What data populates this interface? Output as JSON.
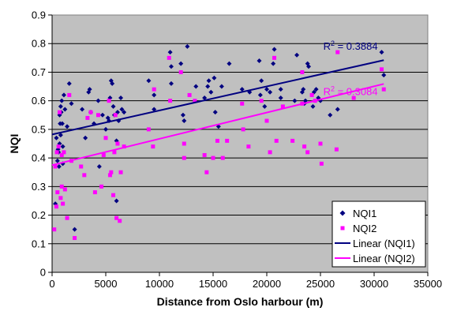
{
  "chart_data": {
    "type": "scatter",
    "title": "",
    "xlabel": "Distance from Oslo harbour (m)",
    "ylabel": "NQI",
    "xlim": [
      0,
      35000
    ],
    "ylim": [
      0,
      0.9
    ],
    "x_ticks": [
      0,
      5000,
      10000,
      15000,
      20000,
      25000,
      30000,
      35000
    ],
    "x_tick_labels": [
      "0",
      "5000",
      "10000",
      "15000",
      "20000",
      "25000",
      "30000",
      "35000"
    ],
    "y_ticks": [
      0,
      0.1,
      0.2,
      0.3,
      0.4,
      0.5,
      0.6,
      0.7,
      0.8,
      0.9
    ],
    "y_tick_labels": [
      "0",
      "0.1",
      "0.2",
      "0.3",
      "0.4",
      "0.5",
      "0.6",
      "0.7",
      "0.8",
      "0.9"
    ],
    "plot_background": "#c0c0c0",
    "grid": "horizontal",
    "legend_position": "bottom-right",
    "series": [
      {
        "name": "NQI1",
        "kind": "scatter",
        "marker": "diamond",
        "color": "#000080",
        "points": [
          [
            300,
            0.24
          ],
          [
            400,
            0.47
          ],
          [
            500,
            0.39
          ],
          [
            550,
            0.43
          ],
          [
            600,
            0.42
          ],
          [
            650,
            0.37
          ],
          [
            700,
            0.55
          ],
          [
            700,
            0.45
          ],
          [
            750,
            0.52
          ],
          [
            800,
            0.58
          ],
          [
            800,
            0.48
          ],
          [
            850,
            0.56
          ],
          [
            900,
            0.6
          ],
          [
            950,
            0.52
          ],
          [
            1000,
            0.44
          ],
          [
            1000,
            0.38
          ],
          [
            1100,
            0.62
          ],
          [
            1200,
            0.57
          ],
          [
            1400,
            0.51
          ],
          [
            1600,
            0.66
          ],
          [
            1800,
            0.59
          ],
          [
            2100,
            0.15
          ],
          [
            2800,
            0.57
          ],
          [
            3100,
            0.47
          ],
          [
            3400,
            0.63
          ],
          [
            3500,
            0.64
          ],
          [
            3600,
            0.56
          ],
          [
            3900,
            0.52
          ],
          [
            4300,
            0.6
          ],
          [
            4400,
            0.37
          ],
          [
            4700,
            0.55
          ],
          [
            5000,
            0.5
          ],
          [
            5200,
            0.54
          ],
          [
            5300,
            0.53
          ],
          [
            5400,
            0.61
          ],
          [
            5500,
            0.67
          ],
          [
            5600,
            0.66
          ],
          [
            5700,
            0.58
          ],
          [
            5800,
            0.55
          ],
          [
            6000,
            0.46
          ],
          [
            6000,
            0.25
          ],
          [
            6100,
            0.56
          ],
          [
            6200,
            0.53
          ],
          [
            6400,
            0.61
          ],
          [
            6500,
            0.57
          ],
          [
            6700,
            0.56
          ],
          [
            9000,
            0.67
          ],
          [
            9500,
            0.62
          ],
          [
            9500,
            0.57
          ],
          [
            11000,
            0.77
          ],
          [
            11100,
            0.72
          ],
          [
            11100,
            0.66
          ],
          [
            12000,
            0.73
          ],
          [
            12200,
            0.55
          ],
          [
            12300,
            0.53
          ],
          [
            12600,
            0.79
          ],
          [
            13400,
            0.65
          ],
          [
            14200,
            0.61
          ],
          [
            14500,
            0.65
          ],
          [
            14600,
            0.67
          ],
          [
            14800,
            0.63
          ],
          [
            15100,
            0.68
          ],
          [
            15200,
            0.56
          ],
          [
            15500,
            0.51
          ],
          [
            15800,
            0.65
          ],
          [
            16500,
            0.73
          ],
          [
            17700,
            0.64
          ],
          [
            18400,
            0.63
          ],
          [
            19300,
            0.74
          ],
          [
            19400,
            0.62
          ],
          [
            19500,
            0.67
          ],
          [
            19800,
            0.58
          ],
          [
            20000,
            0.64
          ],
          [
            20300,
            0.63
          ],
          [
            20600,
            0.73
          ],
          [
            20700,
            0.78
          ],
          [
            21300,
            0.64
          ],
          [
            21300,
            0.61
          ],
          [
            22600,
            0.6
          ],
          [
            22800,
            0.76
          ],
          [
            23300,
            0.63
          ],
          [
            23400,
            0.64
          ],
          [
            23500,
            0.59
          ],
          [
            23600,
            0.6
          ],
          [
            23800,
            0.73
          ],
          [
            23900,
            0.72
          ],
          [
            24300,
            0.58
          ],
          [
            24400,
            0.63
          ],
          [
            24600,
            0.64
          ],
          [
            24800,
            0.61
          ],
          [
            25000,
            0.6
          ],
          [
            25900,
            0.55
          ],
          [
            26600,
            0.57
          ],
          [
            30700,
            0.77
          ],
          [
            30900,
            0.69
          ]
        ]
      },
      {
        "name": "NQI2",
        "kind": "scatter",
        "marker": "square",
        "color": "#ff00ff",
        "points": [
          [
            200,
            0.15
          ],
          [
            300,
            0.37
          ],
          [
            400,
            0.23
          ],
          [
            450,
            0.42
          ],
          [
            500,
            0.28
          ],
          [
            600,
            0.44
          ],
          [
            700,
            0.56
          ],
          [
            800,
            0.26
          ],
          [
            900,
            0.3
          ],
          [
            900,
            0.41
          ],
          [
            1000,
            0.24
          ],
          [
            1100,
            0.42
          ],
          [
            1200,
            0.29
          ],
          [
            1400,
            0.19
          ],
          [
            1600,
            0.62
          ],
          [
            1800,
            0.39
          ],
          [
            2100,
            0.12
          ],
          [
            2700,
            0.37
          ],
          [
            3000,
            0.34
          ],
          [
            3300,
            0.54
          ],
          [
            3600,
            0.56
          ],
          [
            4000,
            0.28
          ],
          [
            4300,
            0.55
          ],
          [
            4600,
            0.3
          ],
          [
            4800,
            0.41
          ],
          [
            5000,
            0.47
          ],
          [
            5300,
            0.6
          ],
          [
            5400,
            0.34
          ],
          [
            5500,
            0.35
          ],
          [
            5700,
            0.27
          ],
          [
            5800,
            0.42
          ],
          [
            5900,
            0.55
          ],
          [
            6000,
            0.19
          ],
          [
            6100,
            0.45
          ],
          [
            6300,
            0.18
          ],
          [
            6400,
            0.35
          ],
          [
            6700,
            0.44
          ],
          [
            9000,
            0.5
          ],
          [
            9400,
            0.44
          ],
          [
            9500,
            0.64
          ],
          [
            10900,
            0.75
          ],
          [
            11000,
            0.6
          ],
          [
            12000,
            0.7
          ],
          [
            12300,
            0.45
          ],
          [
            12300,
            0.4
          ],
          [
            12800,
            0.62
          ],
          [
            13300,
            0.6
          ],
          [
            14200,
            0.41
          ],
          [
            14400,
            0.35
          ],
          [
            15000,
            0.4
          ],
          [
            15400,
            0.46
          ],
          [
            15900,
            0.4
          ],
          [
            16300,
            0.46
          ],
          [
            17700,
            0.59
          ],
          [
            17800,
            0.5
          ],
          [
            18300,
            0.44
          ],
          [
            19500,
            0.6
          ],
          [
            20000,
            0.53
          ],
          [
            20300,
            0.42
          ],
          [
            20700,
            0.75
          ],
          [
            20900,
            0.46
          ],
          [
            21500,
            0.58
          ],
          [
            22400,
            0.46
          ],
          [
            23300,
            0.7
          ],
          [
            23300,
            0.59
          ],
          [
            23500,
            0.44
          ],
          [
            23800,
            0.42
          ],
          [
            24200,
            0.62
          ],
          [
            24500,
            0.6
          ],
          [
            25000,
            0.45
          ],
          [
            25100,
            0.38
          ],
          [
            26500,
            0.43
          ],
          [
            26600,
            0.77
          ],
          [
            28100,
            0.61
          ],
          [
            30700,
            0.71
          ],
          [
            30900,
            0.64
          ]
        ]
      },
      {
        "name": "Linear (NQI1)",
        "kind": "line",
        "color": "#000080",
        "points": [
          [
            0,
            0.482
          ],
          [
            30900,
            0.742
          ]
        ],
        "r2_label": "R² = 0.3884",
        "r2_anchor": [
          27800,
          0.778
        ]
      },
      {
        "name": "Linear (NQI2)",
        "kind": "line",
        "color": "#ff00ff",
        "points": [
          [
            0,
            0.375
          ],
          [
            30900,
            0.659
          ]
        ],
        "r2_label": "R² = 0.3084",
        "r2_anchor": [
          27800,
          0.62
        ]
      }
    ]
  }
}
